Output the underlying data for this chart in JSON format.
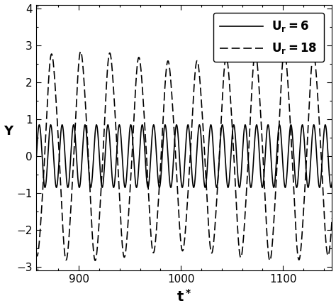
{
  "title": "",
  "xlabel": "t*",
  "ylabel": "Y",
  "xlim": [
    858,
    1148
  ],
  "ylim": [
    -3.1,
    4.1
  ],
  "xticks": [
    900,
    1000,
    1100
  ],
  "yticks": [
    -3,
    -2,
    -1,
    0,
    1,
    2,
    3,
    4
  ],
  "t_start": 858,
  "t_end": 1148,
  "n_points": 8000,
  "Ur6_amplitude": 0.85,
  "Ur18_amplitude": 2.6,
  "line_color": "#000000",
  "linewidth_solid": 1.2,
  "linewidth_dashed": 1.2,
  "background_color": "#ffffff",
  "figsize": [
    4.74,
    4.34
  ],
  "dpi": 100,
  "tick_fontsize": 11,
  "xlabel_fontsize": 14,
  "ylabel_fontsize": 13,
  "legend_fontsize": 11
}
